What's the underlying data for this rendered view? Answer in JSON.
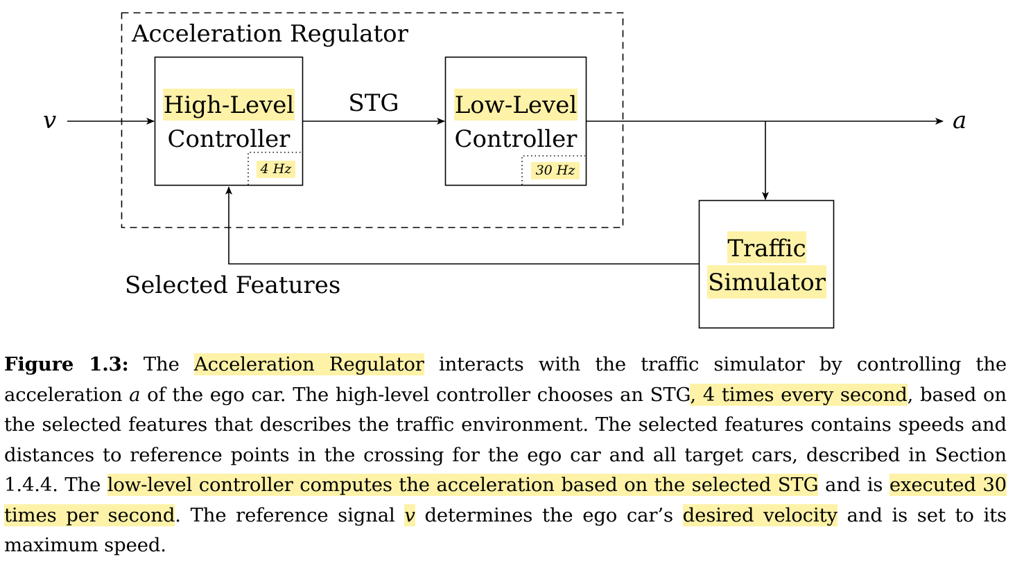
{
  "diagram": {
    "regulator_label": "Acceleration Regulator",
    "high_level": {
      "line1": "High-Level",
      "line2": "Controller",
      "rate": "4 Hz"
    },
    "low_level": {
      "line1": "Low-Level",
      "line2": "Controller",
      "rate": "30 Hz"
    },
    "simulator": {
      "line1": "Traffic",
      "line2": "Simulator"
    },
    "signal_in": "v",
    "signal_out": "a",
    "edge_stg": "STG",
    "edge_features": "Selected Features"
  },
  "caption": {
    "label": "Figure 1.3:",
    "t1": " The ",
    "h1": "Acceleration Regulator",
    "t2": " interacts with the traffic simulator by controlling the acceleration ",
    "v_a": "a",
    "t3": " of the ego car. The high-level controller chooses an STG",
    "h2": ", 4 times every second",
    "t4": ", based on the selected features that describes the traffic environment. The selected features contains speeds and distances to reference points in the crossing for the ego car and all target cars, described in Section 1.4.4. The ",
    "h3": "low-level controller computes the acceleration based on the selected ",
    "h4": "STG",
    "t5": " and is ",
    "h5": "executed 30 times per second",
    "t6": ". The reference signal ",
    "v_v": "v",
    "t7": " determines the ego car’s ",
    "h6": "desired velocity",
    "t8": " and is set to its maximum speed."
  },
  "colors": {
    "highlight": "#fdf2a8",
    "stroke": "#000000"
  }
}
